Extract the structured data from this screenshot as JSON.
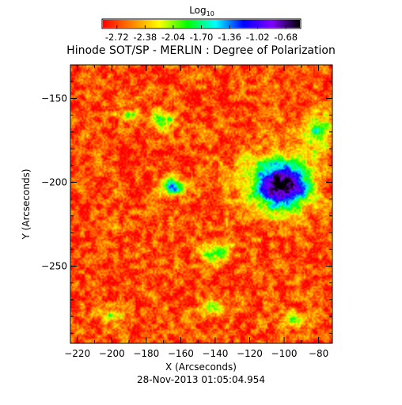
{
  "chart_data": {
    "type": "heatmap",
    "title": "Hinode SOT/SP - MERLIN : Degree of Polarization",
    "xlabel": "X (Arcseconds)",
    "ylabel": "Y (Arcseconds)",
    "timestamp": "28-Nov-2013 01:05:04.954",
    "xlim": [
      -224,
      -72
    ],
    "ylim": [
      -296,
      -130
    ],
    "xticks": [
      -220,
      -200,
      -180,
      -160,
      -140,
      -120,
      -100,
      -80
    ],
    "yticks": [
      -250,
      -200,
      -150
    ],
    "colorbar": {
      "label_base": "Log",
      "label_sub": "10",
      "range": [
        -2.89,
        -0.51
      ],
      "ticks": [
        "-2.72",
        "-2.38",
        "-2.04",
        "-1.70",
        "-1.36",
        "-1.02",
        "-0.68"
      ],
      "colormap": [
        "#ff0000",
        "#ff8000",
        "#ffff00",
        "#00ff00",
        "#00ffff",
        "#0000ff",
        "#8000ff",
        "#000000"
      ]
    },
    "features": [
      {
        "name": "sunspot",
        "x": -100,
        "y": -202,
        "peak_log10": -0.68
      },
      {
        "name": "pore",
        "x": -165,
        "y": -203,
        "peak_log10": -1.3
      },
      {
        "name": "network",
        "x": -170,
        "y": -162,
        "peak_log10": -1.9
      },
      {
        "name": "network",
        "x": -140,
        "y": -242,
        "peak_log10": -1.8
      },
      {
        "name": "network",
        "x": -140,
        "y": -275,
        "peak_log10": -2.0
      }
    ]
  }
}
